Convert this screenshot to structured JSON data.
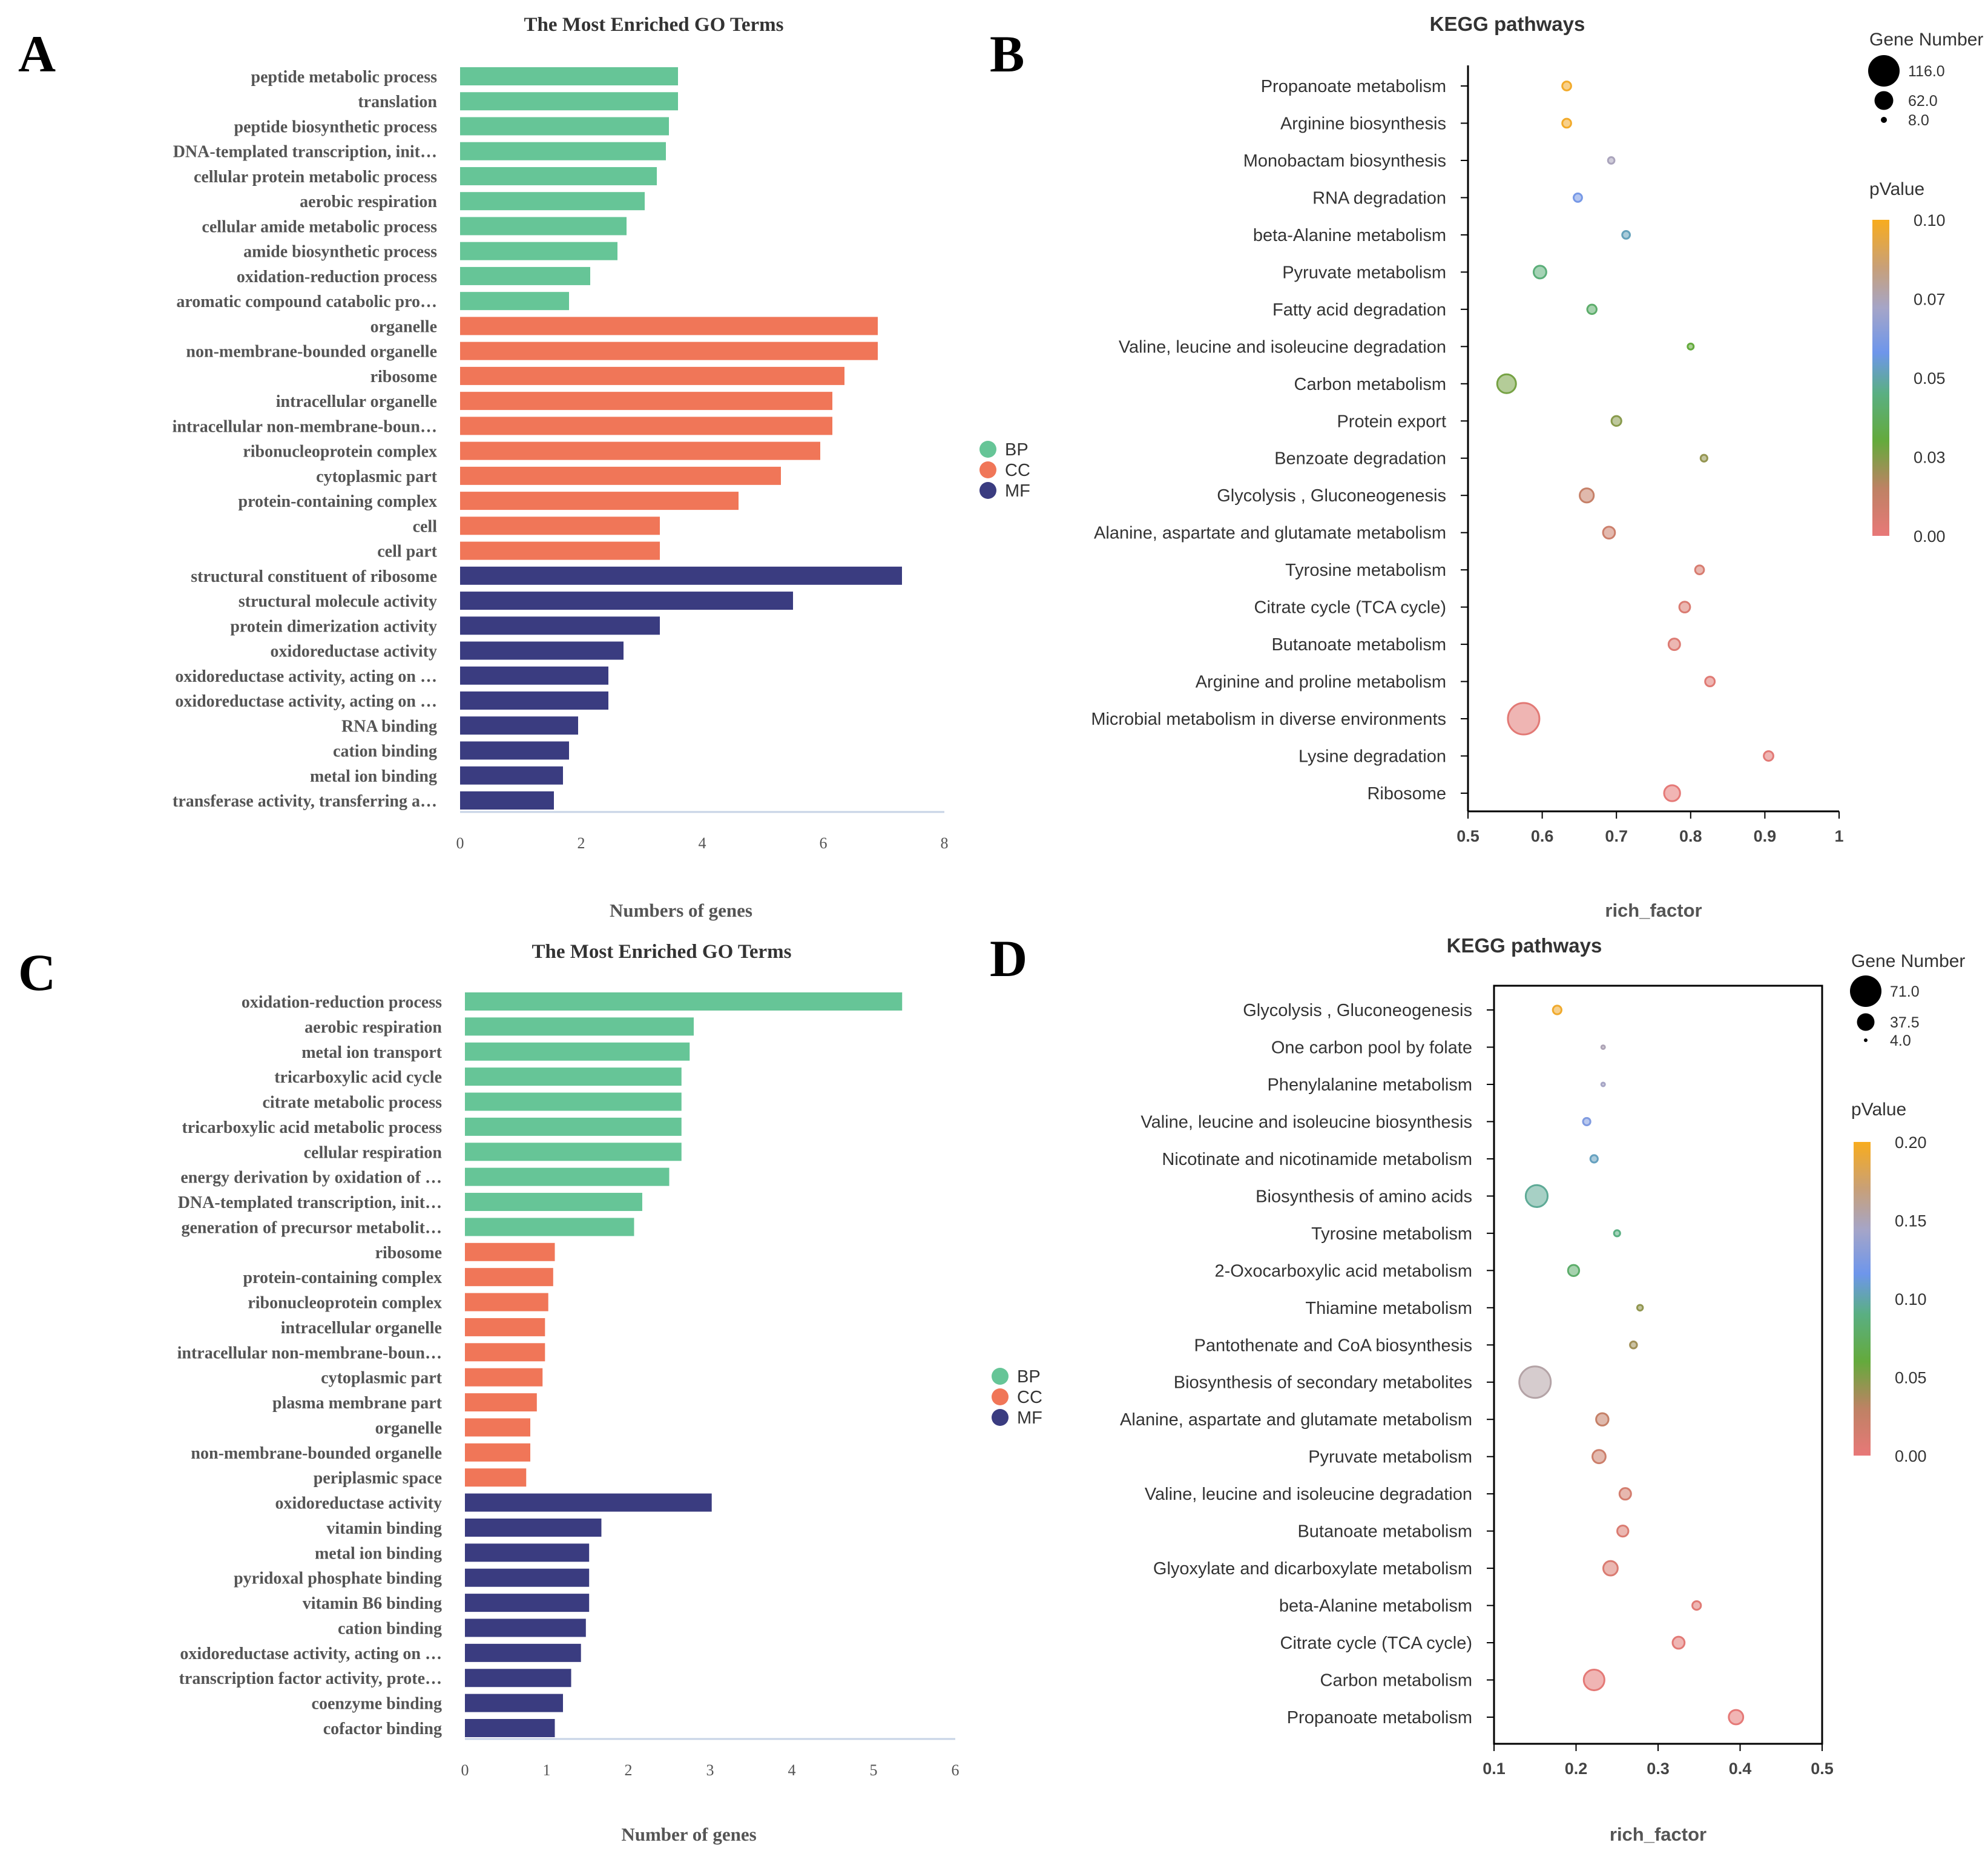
{
  "panel_labels": [
    "A",
    "B",
    "C",
    "D"
  ],
  "chart_data": [
    {
      "panel": "A",
      "type": "bar",
      "orientation": "horizontal",
      "title": "The Most Enriched GO Terms",
      "xlabel": "Numbers of genes",
      "xlim": [
        0,
        8
      ],
      "xticks": [
        0,
        2,
        4,
        6,
        8
      ],
      "legend": [
        {
          "label": "BP",
          "color": "#66c597"
        },
        {
          "label": "CC",
          "color": "#f07658"
        },
        {
          "label": "MF",
          "color": "#3a3c80"
        }
      ],
      "categories": [
        "peptide metabolic process",
        "translation",
        "peptide biosynthetic process",
        "DNA-templated transcription, init…",
        "cellular protein metabolic process",
        "aerobic respiration",
        "cellular amide metabolic process",
        "amide biosynthetic process",
        "oxidation-reduction process",
        "aromatic compound catabolic pro…",
        "organelle",
        "non-membrane-bounded organelle",
        "ribosome",
        "intracellular organelle",
        "intracellular non-membrane-boun…",
        "ribonucleoprotein complex",
        "cytoplasmic part",
        "protein-containing complex",
        "cell",
        "cell part",
        "structural constituent of ribosome",
        "structural molecule activity",
        "protein dimerization activity",
        "oxidoreductase activity",
        "oxidoreductase activity, acting on …",
        "oxidoreductase activity, acting on …",
        "RNA binding",
        "cation binding",
        "metal ion binding",
        "transferase activity, transferring a…"
      ],
      "values": [
        3.6,
        3.6,
        3.45,
        3.4,
        3.25,
        3.05,
        2.75,
        2.6,
        2.15,
        1.8,
        6.9,
        6.9,
        6.35,
        6.15,
        6.15,
        5.95,
        5.3,
        4.6,
        3.3,
        3.3,
        7.3,
        5.5,
        3.3,
        2.7,
        2.45,
        2.45,
        1.95,
        1.8,
        1.7,
        1.55
      ],
      "groups": [
        "BP",
        "BP",
        "BP",
        "BP",
        "BP",
        "BP",
        "BP",
        "BP",
        "BP",
        "BP",
        "CC",
        "CC",
        "CC",
        "CC",
        "CC",
        "CC",
        "CC",
        "CC",
        "CC",
        "CC",
        "MF",
        "MF",
        "MF",
        "MF",
        "MF",
        "MF",
        "MF",
        "MF",
        "MF",
        "MF"
      ]
    },
    {
      "panel": "B",
      "type": "scatter",
      "title": "KEGG pathways",
      "xlabel": "rich_factor",
      "xlim": [
        0.5,
        1.0
      ],
      "xticks": [
        "0.5",
        "0.6",
        "0.7",
        "0.8",
        "0.9",
        "1"
      ],
      "size_legend_title": "Gene Number",
      "size_legend": [
        "116.0",
        "62.0",
        "8.0"
      ],
      "size_range": [
        8,
        116
      ],
      "color_legend_title": "pValue",
      "color_ticks": [
        "0.10",
        "0.07",
        "0.05",
        "0.03",
        "0.00"
      ],
      "color_range": [
        0,
        0.1
      ],
      "points": [
        {
          "pathway": "Propanoate metabolism",
          "x": 0.633,
          "genes": 20,
          "p": 0.098
        },
        {
          "pathway": "Arginine biosynthesis",
          "x": 0.633,
          "genes": 20,
          "p": 0.098
        },
        {
          "pathway": "Monobactam biosynthesis",
          "x": 0.693,
          "genes": 10,
          "p": 0.074
        },
        {
          "pathway": "RNA degradation",
          "x": 0.648,
          "genes": 18,
          "p": 0.06
        },
        {
          "pathway": "beta-Alanine metabolism",
          "x": 0.713,
          "genes": 15,
          "p": 0.052
        },
        {
          "pathway": "Pyruvate metabolism",
          "x": 0.597,
          "genes": 36,
          "p": 0.043
        },
        {
          "pathway": "Fatty acid degradation",
          "x": 0.667,
          "genes": 22,
          "p": 0.04
        },
        {
          "pathway": "Valine, leucine and isoleucine degradation",
          "x": 0.8,
          "genes": 8,
          "p": 0.03
        },
        {
          "pathway": "Carbon metabolism",
          "x": 0.552,
          "genes": 62,
          "p": 0.027
        },
        {
          "pathway": "Protein export",
          "x": 0.7,
          "genes": 24,
          "p": 0.024
        },
        {
          "pathway": "Benzoate degradation",
          "x": 0.818,
          "genes": 11,
          "p": 0.022
        },
        {
          "pathway": "Glycolysis , Gluconeogenesis",
          "x": 0.66,
          "genes": 42,
          "p": 0.012
        },
        {
          "pathway": "Alanine, aspartate and glutamate metabolism",
          "x": 0.69,
          "genes": 33,
          "p": 0.01
        },
        {
          "pathway": "Tyrosine metabolism",
          "x": 0.812,
          "genes": 20,
          "p": 0.006
        },
        {
          "pathway": "Citrate cycle (TCA cycle)",
          "x": 0.792,
          "genes": 28,
          "p": 0.005
        },
        {
          "pathway": "Butanoate metabolism",
          "x": 0.778,
          "genes": 31,
          "p": 0.004
        },
        {
          "pathway": "Arginine and proline metabolism",
          "x": 0.826,
          "genes": 23,
          "p": 0.003
        },
        {
          "pathway": "Microbial metabolism in diverse environments",
          "x": 0.575,
          "genes": 116,
          "p": 0.002
        },
        {
          "pathway": "Lysine degradation",
          "x": 0.905,
          "genes": 23,
          "p": 0.002
        },
        {
          "pathway": "Ribosome",
          "x": 0.775,
          "genes": 50,
          "p": 0.001
        }
      ]
    },
    {
      "panel": "C",
      "type": "bar",
      "orientation": "horizontal",
      "title": "The Most Enriched GO Terms",
      "xlabel": "Number of genes",
      "xlim": [
        0,
        6
      ],
      "xticks": [
        0,
        1,
        2,
        3,
        4,
        5,
        6
      ],
      "legend": [
        {
          "label": "BP",
          "color": "#66c597"
        },
        {
          "label": "CC",
          "color": "#f07658"
        },
        {
          "label": "MF",
          "color": "#3a3c80"
        }
      ],
      "categories": [
        "oxidation-reduction process",
        "aerobic respiration",
        "metal ion transport",
        "tricarboxylic acid cycle",
        "citrate metabolic process",
        "tricarboxylic acid metabolic process",
        "cellular respiration",
        "energy derivation by oxidation of …",
        "DNA-templated transcription, init…",
        "generation of precursor metabolit…",
        "ribosome",
        "protein-containing complex",
        "ribonucleoprotein complex",
        "intracellular organelle",
        "intracellular non-membrane-boun…",
        "cytoplasmic part",
        "plasma membrane part",
        "organelle",
        "non-membrane-bounded organelle",
        "periplasmic space",
        "oxidoreductase activity",
        "vitamin binding",
        "metal ion binding",
        "pyridoxal phosphate binding",
        "vitamin B6 binding",
        "cation binding",
        "oxidoreductase activity, acting on …",
        "transcription factor activity, prote…",
        "coenzyme binding",
        "cofactor binding"
      ],
      "values": [
        5.35,
        2.8,
        2.75,
        2.65,
        2.65,
        2.65,
        2.65,
        2.5,
        2.17,
        2.07,
        1.1,
        1.08,
        1.02,
        0.98,
        0.98,
        0.95,
        0.88,
        0.8,
        0.8,
        0.75,
        3.02,
        1.67,
        1.52,
        1.52,
        1.52,
        1.48,
        1.42,
        1.3,
        1.2,
        1.1
      ],
      "groups": [
        "BP",
        "BP",
        "BP",
        "BP",
        "BP",
        "BP",
        "BP",
        "BP",
        "BP",
        "BP",
        "CC",
        "CC",
        "CC",
        "CC",
        "CC",
        "CC",
        "CC",
        "CC",
        "CC",
        "CC",
        "MF",
        "MF",
        "MF",
        "MF",
        "MF",
        "MF",
        "MF",
        "MF",
        "MF",
        "MF"
      ]
    },
    {
      "panel": "D",
      "type": "scatter",
      "title": "KEGG pathways",
      "xlabel": "rich_factor",
      "xlim": [
        0.1,
        0.5
      ],
      "xticks": [
        "0.1",
        "0.2",
        "0.3",
        "0.4",
        "0.5"
      ],
      "size_legend_title": "Gene Number",
      "size_legend": [
        "71.0",
        "37.5",
        "4.0"
      ],
      "size_range": [
        4,
        71
      ],
      "color_legend_title": "pValue",
      "color_ticks": [
        "0.20",
        "0.15",
        "0.10",
        "0.05",
        "0.00"
      ],
      "color_range": [
        0,
        0.2
      ],
      "points": [
        {
          "pathway": "Glycolysis , Gluconeogenesis",
          "x": 0.177,
          "genes": 16,
          "p": 0.195
        },
        {
          "pathway": "One carbon pool by folate",
          "x": 0.233,
          "genes": 4,
          "p": 0.15
        },
        {
          "pathway": "Phenylalanine metabolism",
          "x": 0.233,
          "genes": 4,
          "p": 0.145
        },
        {
          "pathway": "Valine, leucine and isoleucine biosynthesis",
          "x": 0.213,
          "genes": 13,
          "p": 0.125
        },
        {
          "pathway": "Nicotinate and nicotinamide metabolism",
          "x": 0.222,
          "genes": 13,
          "p": 0.105
        },
        {
          "pathway": "Biosynthesis of amino acids",
          "x": 0.152,
          "genes": 48,
          "p": 0.095
        },
        {
          "pathway": "Tyrosine metabolism",
          "x": 0.25,
          "genes": 10,
          "p": 0.09
        },
        {
          "pathway": "2-Oxocarboxylic acid metabolism",
          "x": 0.197,
          "genes": 22,
          "p": 0.08
        },
        {
          "pathway": "Thiamine metabolism",
          "x": 0.278,
          "genes": 9,
          "p": 0.045
        },
        {
          "pathway": "Pantothenate and CoA biosynthesis",
          "x": 0.27,
          "genes": 12,
          "p": 0.04
        },
        {
          "pathway": "Biosynthesis of secondary metabolites",
          "x": 0.15,
          "genes": 71,
          "p": 0.155
        },
        {
          "pathway": "Alanine, aspartate and glutamate metabolism",
          "x": 0.232,
          "genes": 25,
          "p": 0.025
        },
        {
          "pathway": "Pyruvate metabolism",
          "x": 0.228,
          "genes": 27,
          "p": 0.02
        },
        {
          "pathway": "Valine, leucine and isoleucine degradation",
          "x": 0.26,
          "genes": 23,
          "p": 0.015
        },
        {
          "pathway": "Butanoate metabolism",
          "x": 0.257,
          "genes": 22,
          "p": 0.01
        },
        {
          "pathway": "Glyoxylate and dicarboxylate metabolism",
          "x": 0.242,
          "genes": 30,
          "p": 0.01
        },
        {
          "pathway": "beta-Alanine metabolism",
          "x": 0.347,
          "genes": 16,
          "p": 0.006
        },
        {
          "pathway": "Citrate cycle (TCA cycle)",
          "x": 0.325,
          "genes": 24,
          "p": 0.004
        },
        {
          "pathway": "Carbon metabolism",
          "x": 0.222,
          "genes": 45,
          "p": 0.003
        },
        {
          "pathway": "Propanoate metabolism",
          "x": 0.395,
          "genes": 30,
          "p": 0.002
        }
      ]
    }
  ]
}
